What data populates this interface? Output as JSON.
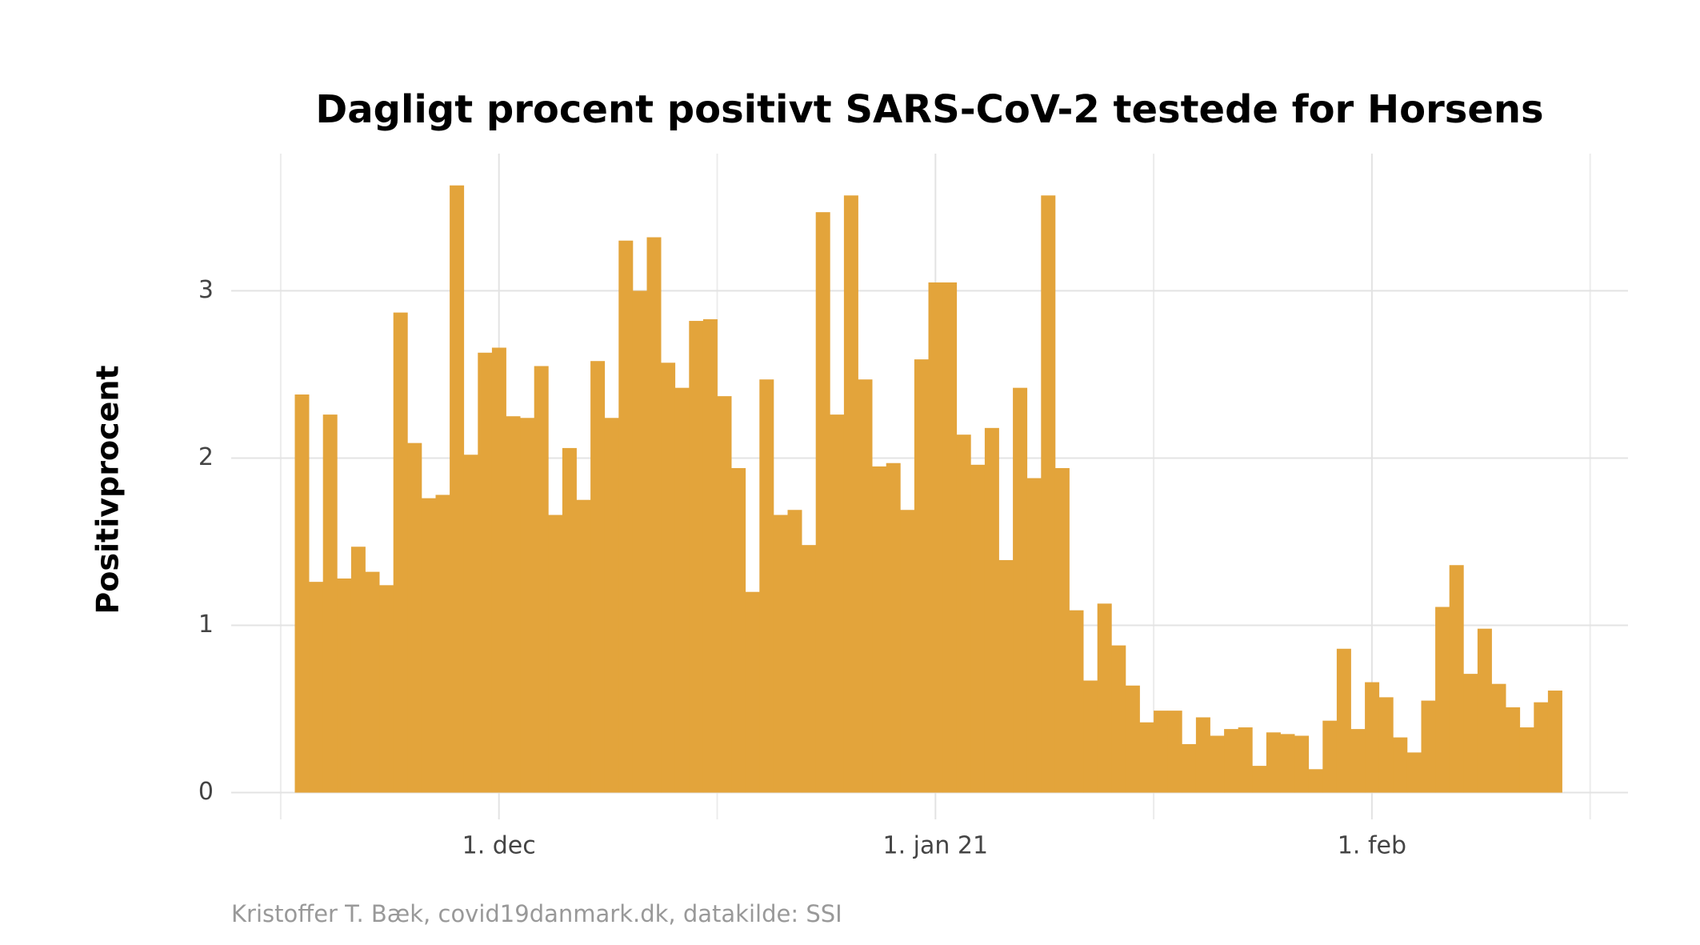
{
  "chart_data": {
    "type": "bar",
    "title": "Dagligt procent positivt SARS-CoV-2 testede for Horsens",
    "y_label": "Positivprocent",
    "caption": "Kristoffer T. Bæk, covid19danmark.dk, datakilde: SSI",
    "categories": [
      null,
      null,
      null,
      null,
      null,
      null,
      null,
      null,
      null,
      null,
      null,
      null,
      null,
      null,
      "1. dec",
      null,
      null,
      null,
      null,
      null,
      null,
      null,
      null,
      null,
      null,
      null,
      null,
      null,
      null,
      null,
      null,
      null,
      null,
      null,
      null,
      null,
      null,
      null,
      null,
      null,
      null,
      null,
      null,
      null,
      null,
      "1. jan 21",
      null,
      null,
      null,
      null,
      null,
      null,
      null,
      null,
      null,
      null,
      null,
      null,
      null,
      null,
      null,
      null,
      null,
      null,
      null,
      null,
      null,
      null,
      null,
      null,
      null,
      null,
      null,
      null,
      null,
      null,
      "1. feb",
      null,
      null,
      null,
      null,
      null,
      null,
      null,
      null,
      null,
      null,
      null,
      null,
      null
    ],
    "values": [
      2.38,
      1.26,
      2.26,
      1.28,
      1.47,
      1.32,
      1.24,
      2.87,
      2.09,
      1.76,
      1.78,
      3.63,
      2.02,
      2.63,
      2.66,
      2.25,
      2.24,
      2.55,
      1.66,
      2.06,
      1.75,
      2.58,
      2.24,
      3.3,
      3.0,
      3.32,
      2.57,
      2.42,
      2.82,
      2.83,
      2.37,
      1.94,
      1.2,
      2.47,
      1.66,
      1.69,
      1.48,
      3.47,
      2.26,
      3.57,
      2.47,
      1.95,
      1.97,
      1.69,
      2.59,
      3.05,
      3.05,
      2.14,
      1.96,
      2.18,
      1.39,
      2.42,
      1.88,
      3.57,
      1.94,
      1.09,
      0.67,
      1.13,
      0.88,
      0.64,
      0.42,
      0.49,
      0.49,
      0.29,
      0.45,
      0.34,
      0.38,
      0.39,
      0.16,
      0.36,
      0.35,
      0.34,
      0.14,
      0.43,
      0.86,
      0.38,
      0.66,
      0.57,
      0.33,
      0.24,
      0.55,
      1.11,
      1.36,
      0.71,
      0.98,
      0.65,
      0.51,
      0.39,
      0.54,
      0.61
    ],
    "color": "#e3a43b",
    "ylim": [
      -0.16,
      3.82
    ],
    "yticks": [
      0,
      1,
      2,
      3
    ],
    "grid": true
  }
}
